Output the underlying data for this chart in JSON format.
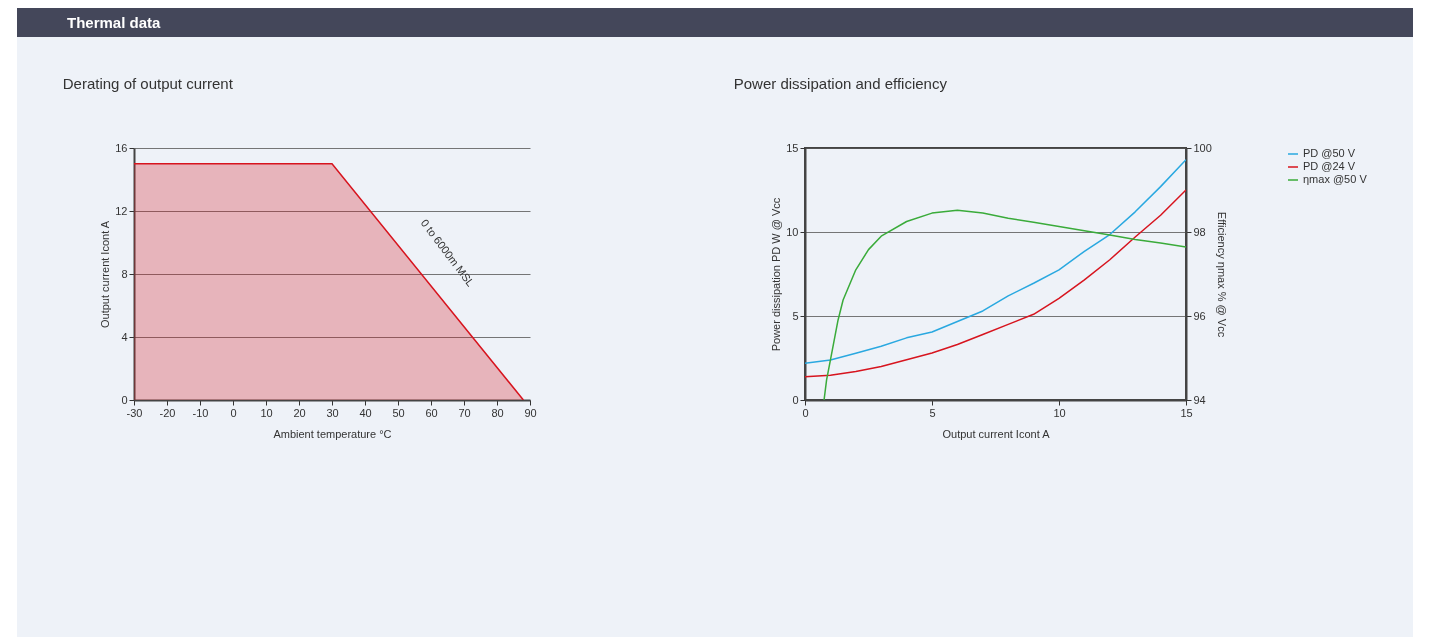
{
  "chart_data": [
    {
      "type": "area",
      "title": "Derating of output current",
      "xlabel": "Ambient temperature °C",
      "ylabel": "Output current Icont A",
      "x": [
        -30,
        30,
        88
      ],
      "values": [
        15,
        15,
        0
      ],
      "color": "#d7141e",
      "xlim": [
        -30,
        90
      ],
      "xticks": [
        -30,
        -20,
        -10,
        0,
        10,
        20,
        30,
        40,
        50,
        60,
        70,
        80,
        90
      ],
      "ylim": [
        0,
        16
      ],
      "yticks": [
        0,
        4,
        8,
        12,
        16
      ],
      "grid": "y",
      "annotations": [
        "Thermal data",
        "0 to 6000m MSL"
      ]
    },
    {
      "type": "line",
      "title": "Power dissipation and efficiency",
      "xlabel": "Output current Icont A",
      "ylabel": "Power dissipation PD W @ Vcc",
      "y2label": "Efficiency ηmax % @ Vcc",
      "xlim": [
        0,
        15
      ],
      "xticks": [
        0,
        5,
        10,
        15
      ],
      "ylim": [
        0,
        15
      ],
      "yticks": [
        0,
        5,
        10,
        15
      ],
      "y2lim": [
        94,
        100
      ],
      "y2ticks": [
        94,
        96,
        98,
        100
      ],
      "grid": "y",
      "legend": "right",
      "series": [
        {
          "name": "PD @50 V",
          "color": "#29a8e0",
          "x": [
            0,
            1,
            2,
            3,
            4,
            5,
            6,
            7,
            8,
            9,
            10,
            11,
            12,
            13,
            14,
            15
          ],
          "values": [
            2.19,
            2.38,
            2.78,
            3.2,
            3.7,
            4.05,
            4.67,
            5.3,
            6.2,
            6.95,
            7.75,
            8.85,
            9.85,
            11.2,
            12.7,
            14.3
          ]
        },
        {
          "name": "PD @24 V",
          "color": "#d7141e",
          "x": [
            0,
            1,
            2,
            3,
            4,
            5,
            6,
            7,
            8,
            9,
            10,
            11,
            12,
            13,
            14,
            15
          ],
          "values": [
            1.39,
            1.47,
            1.7,
            2.0,
            2.4,
            2.8,
            3.3,
            3.9,
            4.5,
            5.1,
            6.05,
            7.15,
            8.35,
            9.7,
            11.0,
            12.5
          ]
        },
        {
          "name": "ηmax @50 V",
          "color": "#3aab3a",
          "axis": "y2",
          "x": [
            0.75,
            0.85,
            1,
            1.3,
            1.5,
            2,
            2.5,
            3,
            4,
            5,
            6,
            7,
            8,
            9,
            10,
            11,
            12,
            13,
            14,
            15
          ],
          "values": [
            94.0,
            94.48,
            94.95,
            95.9,
            96.38,
            97.1,
            97.58,
            97.9,
            98.25,
            98.45,
            98.52,
            98.45,
            98.33,
            98.23,
            98.13,
            98.03,
            97.93,
            97.82,
            97.74,
            97.64
          ]
        }
      ]
    }
  ]
}
